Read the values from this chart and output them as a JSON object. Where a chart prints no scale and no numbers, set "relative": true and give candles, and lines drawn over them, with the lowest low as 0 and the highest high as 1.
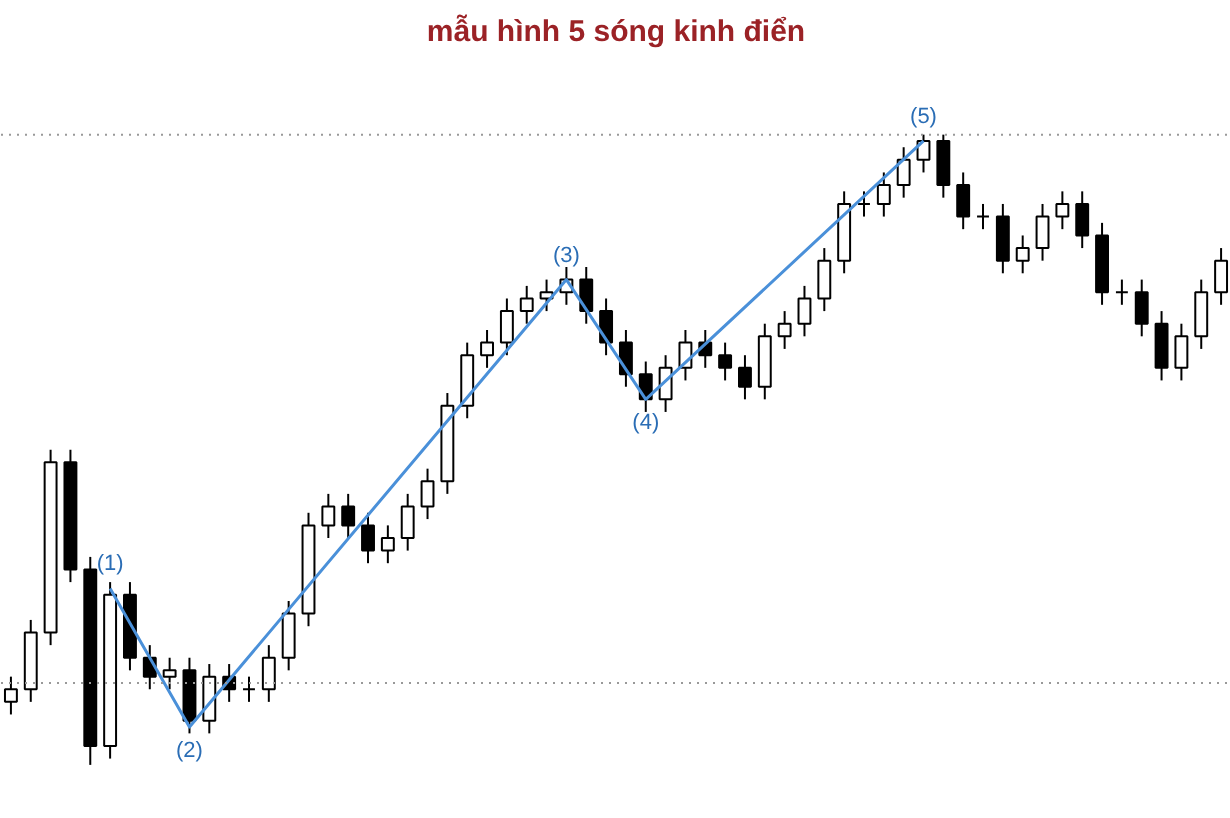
{
  "chart_data": {
    "type": "candlestick",
    "title": "mẫu hình 5 sóng kinh điển",
    "relative": true,
    "color": "#000000",
    "categories": [
      null,
      null,
      null,
      null,
      null,
      null,
      null,
      null,
      null,
      null,
      null,
      null,
      null,
      null,
      null,
      null,
      null,
      null,
      null,
      null,
      null,
      null,
      null,
      null,
      null,
      null,
      null,
      null,
      null,
      null,
      null,
      null,
      null,
      null,
      null,
      null,
      null,
      null,
      null,
      null,
      null,
      null,
      null,
      null,
      null,
      null,
      null,
      null,
      null,
      null,
      null,
      null,
      null,
      null,
      null,
      null,
      null,
      null,
      null,
      null,
      null,
      null
    ],
    "ohlc": [
      [
        0.1,
        0.14,
        0.08,
        0.12
      ],
      [
        0.12,
        0.23,
        0.1,
        0.21
      ],
      [
        0.21,
        0.5,
        0.19,
        0.48
      ],
      [
        0.48,
        0.5,
        0.29,
        0.31
      ],
      [
        0.31,
        0.33,
        0.0,
        0.03
      ],
      [
        0.03,
        0.29,
        0.01,
        0.27
      ],
      [
        0.27,
        0.29,
        0.15,
        0.17
      ],
      [
        0.17,
        0.19,
        0.12,
        0.14
      ],
      [
        0.14,
        0.17,
        0.12,
        0.15
      ],
      [
        0.15,
        0.17,
        0.05,
        0.07
      ],
      [
        0.07,
        0.16,
        0.05,
        0.14
      ],
      [
        0.14,
        0.16,
        0.1,
        0.12
      ],
      [
        0.12,
        0.14,
        0.1,
        0.12
      ],
      [
        0.12,
        0.19,
        0.1,
        0.17
      ],
      [
        0.17,
        0.26,
        0.15,
        0.24
      ],
      [
        0.24,
        0.4,
        0.22,
        0.38
      ],
      [
        0.38,
        0.43,
        0.36,
        0.41
      ],
      [
        0.41,
        0.43,
        0.36,
        0.38
      ],
      [
        0.38,
        0.4,
        0.32,
        0.34
      ],
      [
        0.34,
        0.38,
        0.32,
        0.36
      ],
      [
        0.36,
        0.43,
        0.34,
        0.41
      ],
      [
        0.41,
        0.47,
        0.39,
        0.45
      ],
      [
        0.45,
        0.59,
        0.43,
        0.57
      ],
      [
        0.57,
        0.67,
        0.55,
        0.65
      ],
      [
        0.65,
        0.69,
        0.63,
        0.67
      ],
      [
        0.67,
        0.74,
        0.65,
        0.72
      ],
      [
        0.72,
        0.76,
        0.7,
        0.74
      ],
      [
        0.74,
        0.77,
        0.72,
        0.75
      ],
      [
        0.75,
        0.79,
        0.73,
        0.77
      ],
      [
        0.77,
        0.79,
        0.7,
        0.72
      ],
      [
        0.72,
        0.74,
        0.65,
        0.67
      ],
      [
        0.67,
        0.69,
        0.6,
        0.62
      ],
      [
        0.62,
        0.64,
        0.56,
        0.58
      ],
      [
        0.58,
        0.65,
        0.56,
        0.63
      ],
      [
        0.63,
        0.69,
        0.61,
        0.67
      ],
      [
        0.67,
        0.69,
        0.63,
        0.65
      ],
      [
        0.65,
        0.67,
        0.61,
        0.63
      ],
      [
        0.63,
        0.65,
        0.58,
        0.6
      ],
      [
        0.6,
        0.7,
        0.58,
        0.68
      ],
      [
        0.68,
        0.72,
        0.66,
        0.7
      ],
      [
        0.7,
        0.76,
        0.68,
        0.74
      ],
      [
        0.74,
        0.82,
        0.72,
        0.8
      ],
      [
        0.8,
        0.91,
        0.78,
        0.89
      ],
      [
        0.89,
        0.91,
        0.87,
        0.89
      ],
      [
        0.89,
        0.94,
        0.87,
        0.92
      ],
      [
        0.92,
        0.98,
        0.9,
        0.96
      ],
      [
        0.96,
        1.0,
        0.94,
        0.99
      ],
      [
        0.99,
        1.0,
        0.9,
        0.92
      ],
      [
        0.92,
        0.94,
        0.85,
        0.87
      ],
      [
        0.87,
        0.89,
        0.85,
        0.87
      ],
      [
        0.87,
        0.89,
        0.78,
        0.8
      ],
      [
        0.8,
        0.84,
        0.78,
        0.82
      ],
      [
        0.82,
        0.89,
        0.8,
        0.87
      ],
      [
        0.87,
        0.91,
        0.85,
        0.89
      ],
      [
        0.89,
        0.91,
        0.82,
        0.84
      ],
      [
        0.84,
        0.86,
        0.73,
        0.75
      ],
      [
        0.75,
        0.77,
        0.73,
        0.75
      ],
      [
        0.75,
        0.77,
        0.68,
        0.7
      ],
      [
        0.7,
        0.72,
        0.61,
        0.63
      ],
      [
        0.63,
        0.7,
        0.61,
        0.68
      ],
      [
        0.68,
        0.77,
        0.66,
        0.75
      ],
      [
        0.75,
        0.82,
        0.73,
        0.8
      ]
    ],
    "series": [
      {
        "type": "line",
        "color": "#4a90d9",
        "values": [
          null,
          null,
          null,
          null,
          null,
          0.28,
          null,
          null,
          null,
          0.06,
          null,
          null,
          null,
          null,
          null,
          null,
          null,
          null,
          null,
          null,
          null,
          null,
          null,
          null,
          null,
          null,
          null,
          null,
          0.77,
          null,
          null,
          null,
          0.58,
          null,
          null,
          null,
          null,
          null,
          null,
          null,
          null,
          null,
          null,
          null,
          null,
          null,
          0.99,
          null,
          null,
          null,
          null,
          null,
          null,
          null,
          null,
          null,
          null,
          null,
          null,
          null,
          null,
          null
        ]
      }
    ],
    "annotations": [
      "(1)",
      "(2)",
      "(3)",
      "(4)",
      "(5)"
    ],
    "ref_lines": [
      {
        "axis": "y",
        "value": 1.0,
        "line_style": "dotted",
        "color": "#999999"
      },
      {
        "axis": "y",
        "value": 0.13,
        "line_style": "dotted",
        "color": "#999999"
      }
    ]
  }
}
